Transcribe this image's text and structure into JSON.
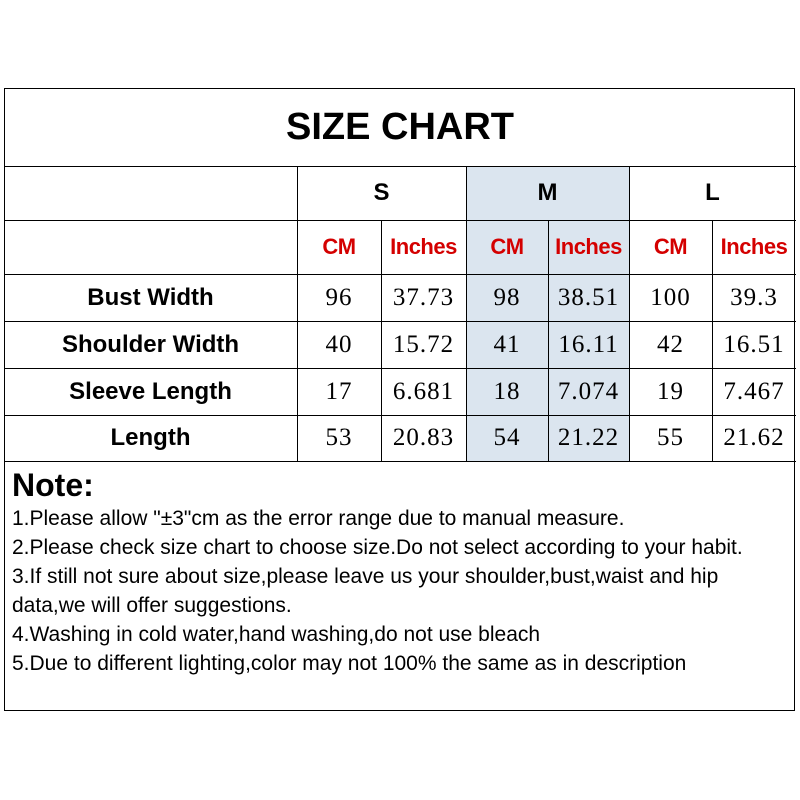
{
  "title": "SIZE CHART",
  "sizes": [
    "S",
    "M",
    "L"
  ],
  "units": [
    "CM",
    "Inches",
    "CM",
    "Inches",
    "CM",
    "Inches"
  ],
  "rows": [
    {
      "label": "Bust Width",
      "values": [
        "96",
        "37.73",
        "98",
        "38.51",
        "100",
        "39.3"
      ]
    },
    {
      "label": "Shoulder Width",
      "values": [
        "40",
        "15.72",
        "41",
        "16.11",
        "42",
        "16.51"
      ]
    },
    {
      "label": "Sleeve Length",
      "values": [
        "17",
        "6.681",
        "18",
        "7.074",
        "19",
        "7.467"
      ]
    },
    {
      "label": "Length",
      "values": [
        "53",
        "20.83",
        "54",
        "21.22",
        "55",
        "21.62"
      ]
    }
  ],
  "note": {
    "title": "Note:",
    "lines": [
      "1.Please allow \"±3\"cm as the error range due to manual measure.",
      "2.Please check size chart to choose size.Do not select according to your habit.",
      "3.If still not sure about size,please leave us your shoulder,bust,waist and hip data,we will offer suggestions.",
      "4.Washing in cold water,hand washing,do not use bleach",
      "5.Due to different lighting,color may not 100% the same as in description"
    ]
  },
  "colors": {
    "unit_text": "#d40000",
    "highlight_column": "#dbe5ef"
  }
}
